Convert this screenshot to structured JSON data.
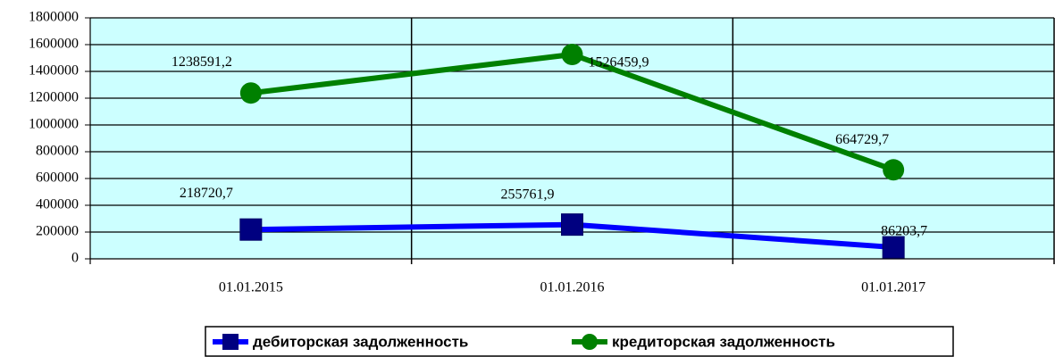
{
  "chart_data": {
    "type": "line",
    "categories": [
      "01.01.2015",
      "01.01.2016",
      "01.01.2017"
    ],
    "series": [
      {
        "name": "дебиторская задолженность",
        "color": "#0000ff",
        "marker_color": "#000080",
        "marker": "square",
        "values": [
          218720.7,
          255761.9,
          86203.7
        ],
        "value_labels": [
          "218720,7",
          "255761,9",
          "86203,7"
        ]
      },
      {
        "name": "кредиторская задолженность",
        "color": "#008000",
        "marker_color": "#008000",
        "marker": "circle",
        "values": [
          1238591.2,
          1526459.9,
          664729.7
        ],
        "value_labels": [
          "1238591,2",
          "1526459,9",
          "664729,7"
        ]
      }
    ],
    "ylim": [
      0,
      1800000
    ],
    "yticks": [
      0,
      200000,
      400000,
      600000,
      800000,
      1000000,
      1200000,
      1400000,
      1600000,
      1800000
    ],
    "grid": true,
    "legend": "bottom",
    "plot_background": "#ccffff"
  }
}
